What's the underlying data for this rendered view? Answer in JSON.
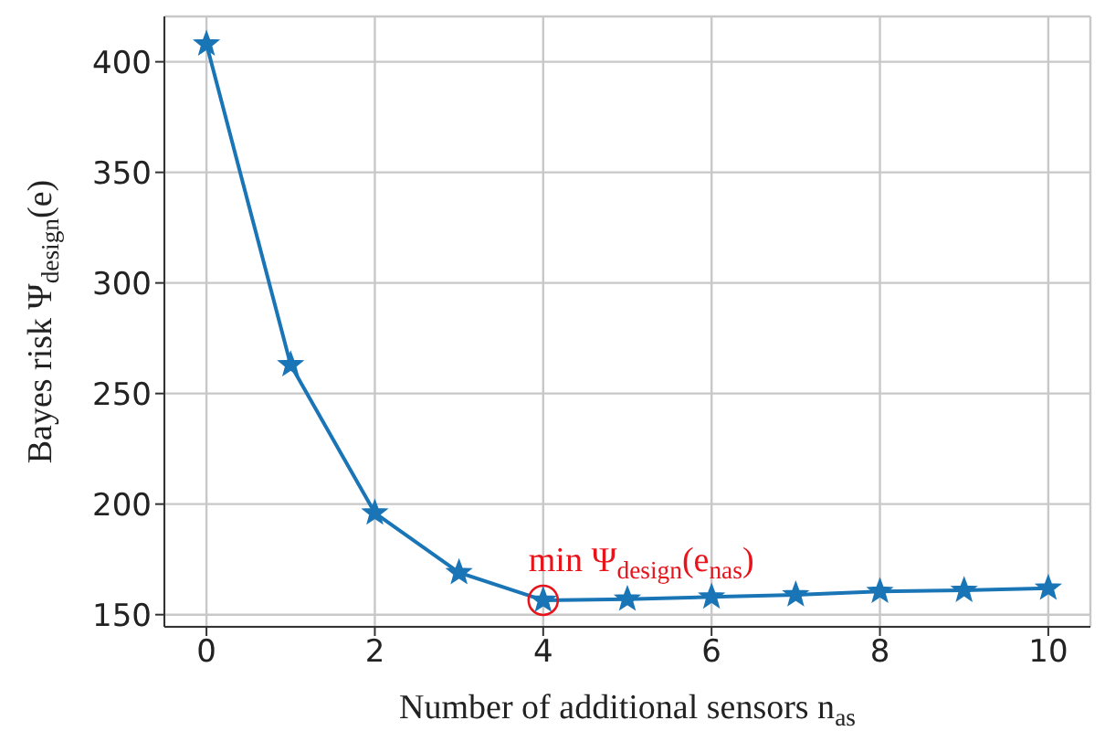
{
  "chart_data": {
    "type": "line",
    "xlabel": "Number of additional sensors n$_{as}$",
    "ylabel": "Bayes risk Ψ$_{design}$(e)",
    "x": [
      0,
      1,
      2,
      3,
      4,
      5,
      6,
      7,
      8,
      9,
      10
    ],
    "series": [
      {
        "color": "#1a75b6",
        "values": [
          408,
          263,
          196,
          169,
          156.5,
          157,
          158,
          159,
          160.5,
          161,
          162
        ]
      }
    ],
    "xlim": [
      -0.5,
      10.5
    ],
    "xticks": [
      0,
      2,
      4,
      6,
      8,
      10
    ],
    "ylim": [
      144.5,
      420.5
    ],
    "yticks": [
      150,
      200,
      250,
      300,
      350,
      400
    ],
    "grid": true,
    "marker": "star",
    "line_style": "solid",
    "annotations": [
      {
        "text": "min Ψ$_{design}$(e$_{nas}$)",
        "x": 4,
        "y": 156.5
      }
    ]
  }
}
